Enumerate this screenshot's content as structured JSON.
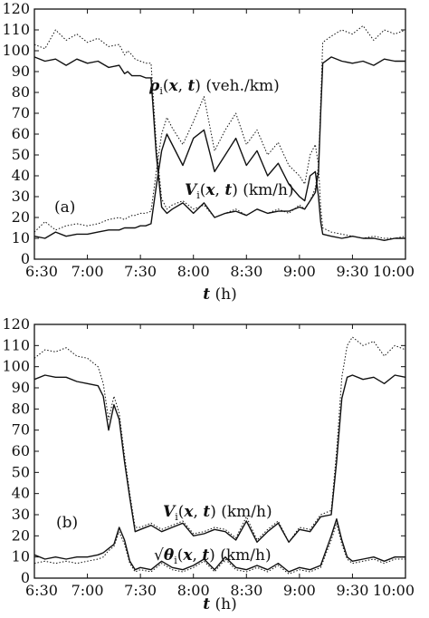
{
  "chart_data": [
    {
      "type": "line",
      "panel_label": "(a)",
      "xlabel": "t (h)",
      "ylabel": "",
      "x_ticks": [
        "6:30",
        "7:00",
        "7:30",
        "8:00",
        "8:30",
        "9:00",
        "9:30",
        "10:00"
      ],
      "x_tick_hours": [
        6.5,
        7.0,
        7.5,
        8.0,
        8.5,
        9.0,
        9.5,
        10.0
      ],
      "xlim": [
        6.5,
        10.0
      ],
      "ylim": [
        0,
        120
      ],
      "y_ticks": [
        0,
        10,
        20,
        30,
        40,
        50,
        60,
        70,
        80,
        90,
        100,
        110,
        120
      ],
      "annotations": [
        {
          "text": "ρi(x, t) (veh./km)",
          "x": 7.62,
          "y": 84
        },
        {
          "text": "Vi(x, t) (km/h)",
          "x": 7.88,
          "y": 28
        },
        {
          "text": "(a)",
          "x": 6.6,
          "y": 24
        }
      ],
      "series": [
        {
          "style": "solid",
          "x": [
            6.5,
            6.6,
            6.7,
            6.8,
            6.9,
            7.0,
            7.1,
            7.2,
            7.3,
            7.35,
            7.38,
            7.42,
            7.45,
            7.5,
            7.55,
            7.6,
            7.65,
            7.7,
            7.75,
            7.8,
            7.9,
            8.0,
            8.1,
            8.2,
            8.3,
            8.4,
            8.5,
            8.6,
            8.7,
            8.8,
            8.9,
            9.0,
            9.05,
            9.1,
            9.15,
            9.18,
            9.2,
            9.22,
            9.3,
            9.4,
            9.5,
            9.6,
            9.7,
            9.8,
            9.9,
            10.0
          ],
          "y": [
            97,
            95,
            96,
            93,
            96,
            94,
            95,
            92,
            93,
            89,
            90,
            88,
            88,
            88,
            87,
            87,
            50,
            25,
            22,
            24,
            27,
            22,
            27,
            20,
            22,
            23,
            21,
            24,
            22,
            23,
            23,
            25,
            24,
            28,
            32,
            42,
            70,
            94,
            97,
            95,
            94,
            95,
            93,
            96,
            95,
            95
          ]
        },
        {
          "style": "dotted",
          "x": [
            6.5,
            6.6,
            6.7,
            6.8,
            6.9,
            7.0,
            7.1,
            7.2,
            7.3,
            7.35,
            7.38,
            7.42,
            7.45,
            7.5,
            7.55,
            7.6,
            7.65,
            7.7,
            7.75,
            7.8,
            7.9,
            8.0,
            8.1,
            8.2,
            8.3,
            8.4,
            8.5,
            8.6,
            8.7,
            8.8,
            8.9,
            9.0,
            9.05,
            9.1,
            9.15,
            9.18,
            9.2,
            9.22,
            9.3,
            9.4,
            9.5,
            9.6,
            9.7,
            9.8,
            9.9,
            10.0
          ],
          "y": [
            103,
            101,
            110,
            105,
            108,
            104,
            106,
            102,
            103,
            98,
            100,
            98,
            96,
            95,
            94,
            94,
            55,
            29,
            24,
            26,
            28,
            24,
            26,
            20,
            22,
            24,
            21,
            24,
            22,
            24,
            22,
            26,
            24,
            28,
            34,
            45,
            75,
            104,
            107,
            110,
            108,
            112,
            105,
            110,
            108,
            110
          ]
        },
        {
          "style": "solid",
          "x": [
            6.5,
            6.6,
            6.7,
            6.8,
            6.9,
            7.0,
            7.1,
            7.2,
            7.3,
            7.35,
            7.38,
            7.42,
            7.45,
            7.5,
            7.55,
            7.6,
            7.65,
            7.7,
            7.75,
            7.8,
            7.9,
            8.0,
            8.1,
            8.2,
            8.3,
            8.4,
            8.5,
            8.6,
            8.7,
            8.8,
            8.9,
            9.0,
            9.05,
            9.1,
            9.15,
            9.18,
            9.2,
            9.22,
            9.3,
            9.4,
            9.5,
            9.6,
            9.7,
            9.8,
            9.9,
            10.0
          ],
          "y": [
            11,
            10,
            13,
            11,
            12,
            12,
            13,
            14,
            14,
            15,
            15,
            15,
            15,
            16,
            16,
            17,
            35,
            52,
            60,
            55,
            45,
            58,
            62,
            42,
            50,
            58,
            45,
            52,
            40,
            46,
            36,
            30,
            28,
            40,
            42,
            30,
            18,
            12,
            11,
            10,
            11,
            10,
            10,
            9,
            10,
            10
          ]
        },
        {
          "style": "dotted",
          "x": [
            6.5,
            6.6,
            6.7,
            6.8,
            6.9,
            7.0,
            7.1,
            7.2,
            7.3,
            7.35,
            7.38,
            7.42,
            7.45,
            7.5,
            7.55,
            7.6,
            7.65,
            7.7,
            7.75,
            7.8,
            7.9,
            8.0,
            8.1,
            8.2,
            8.3,
            8.4,
            8.5,
            8.6,
            8.7,
            8.8,
            8.9,
            9.0,
            9.05,
            9.1,
            9.15,
            9.18,
            9.2,
            9.22,
            9.3,
            9.4,
            9.5,
            9.6,
            9.7,
            9.8,
            9.9,
            10.0
          ],
          "y": [
            13,
            18,
            14,
            16,
            17,
            16,
            17,
            19,
            20,
            19,
            20,
            21,
            21,
            22,
            22,
            23,
            42,
            60,
            68,
            63,
            55,
            66,
            78,
            52,
            62,
            70,
            55,
            62,
            50,
            56,
            45,
            40,
            36,
            50,
            55,
            45,
            25,
            15,
            13,
            12,
            11,
            10,
            11,
            10,
            10,
            11
          ]
        }
      ]
    },
    {
      "type": "line",
      "panel_label": "(b)",
      "xlabel": "t (h)",
      "ylabel": "",
      "x_ticks": [
        "6:30",
        "7:00",
        "7:30",
        "8:00",
        "8:30",
        "9:00",
        "9:30",
        "10:00"
      ],
      "x_tick_hours": [
        6.5,
        7.0,
        7.5,
        8.0,
        8.5,
        9.0,
        9.5,
        10.0
      ],
      "xlim": [
        6.5,
        10.0
      ],
      "ylim": [
        0,
        120
      ],
      "y_ticks": [
        0,
        10,
        20,
        30,
        40,
        50,
        60,
        70,
        80,
        90,
        100,
        110,
        120
      ],
      "annotations": [
        {
          "text": "Vi(x, t) (km/h)",
          "x": 8.3,
          "y": 26
        },
        {
          "text": "√θi(x, t) (km/h)",
          "x": 7.94,
          "y": 11
        },
        {
          "text": "(b)",
          "x": 6.6,
          "y": 21
        }
      ],
      "series": [
        {
          "style": "solid",
          "x": [
            6.5,
            6.6,
            6.7,
            6.8,
            6.9,
            7.0,
            7.1,
            7.15,
            7.2,
            7.25,
            7.3,
            7.35,
            7.4,
            7.45,
            7.5,
            7.6,
            7.7,
            7.8,
            7.9,
            8.0,
            8.1,
            8.2,
            8.3,
            8.4,
            8.5,
            8.6,
            8.7,
            8.8,
            8.9,
            9.0,
            9.1,
            9.2,
            9.3,
            9.35,
            9.4,
            9.45,
            9.5,
            9.6,
            9.7,
            9.8,
            9.9,
            10.0
          ],
          "y": [
            94,
            96,
            95,
            95,
            93,
            92,
            91,
            86,
            70,
            82,
            75,
            55,
            38,
            22,
            23,
            25,
            22,
            24,
            26,
            20,
            21,
            23,
            22,
            18,
            27,
            17,
            22,
            26,
            17,
            23,
            22,
            29,
            30,
            55,
            85,
            95,
            96,
            94,
            95,
            92,
            96,
            95
          ]
        },
        {
          "style": "dotted",
          "x": [
            6.5,
            6.6,
            6.7,
            6.8,
            6.9,
            7.0,
            7.1,
            7.15,
            7.2,
            7.25,
            7.3,
            7.35,
            7.4,
            7.45,
            7.5,
            7.6,
            7.7,
            7.8,
            7.9,
            8.0,
            8.1,
            8.2,
            8.3,
            8.4,
            8.5,
            8.6,
            8.7,
            8.8,
            8.9,
            9.0,
            9.1,
            9.2,
            9.3,
            9.35,
            9.4,
            9.45,
            9.5,
            9.6,
            9.7,
            9.8,
            9.9,
            10.0
          ],
          "y": [
            104,
            108,
            107,
            109,
            105,
            104,
            100,
            92,
            75,
            86,
            78,
            58,
            40,
            24,
            24,
            26,
            23,
            25,
            27,
            21,
            22,
            24,
            23,
            19,
            29,
            18,
            23,
            27,
            17,
            24,
            23,
            30,
            32,
            60,
            95,
            110,
            114,
            110,
            112,
            105,
            110,
            108
          ]
        },
        {
          "style": "solid",
          "x": [
            6.5,
            6.6,
            6.7,
            6.8,
            6.9,
            7.0,
            7.1,
            7.15,
            7.2,
            7.25,
            7.3,
            7.35,
            7.4,
            7.45,
            7.5,
            7.6,
            7.7,
            7.8,
            7.9,
            8.0,
            8.1,
            8.2,
            8.3,
            8.4,
            8.5,
            8.6,
            8.7,
            8.8,
            8.9,
            9.0,
            9.1,
            9.2,
            9.3,
            9.35,
            9.4,
            9.45,
            9.5,
            9.6,
            9.7,
            9.8,
            9.9,
            10.0
          ],
          "y": [
            11,
            9,
            10,
            9,
            10,
            10,
            11,
            12,
            14,
            16,
            24,
            18,
            8,
            4,
            5,
            4,
            8,
            5,
            4,
            6,
            9,
            4,
            10,
            5,
            4,
            6,
            4,
            7,
            3,
            5,
            4,
            6,
            20,
            28,
            18,
            10,
            8,
            9,
            10,
            8,
            10,
            10
          ]
        },
        {
          "style": "dotted",
          "x": [
            6.5,
            6.6,
            6.7,
            6.8,
            6.9,
            7.0,
            7.1,
            7.15,
            7.2,
            7.25,
            7.3,
            7.35,
            7.4,
            7.45,
            7.5,
            7.6,
            7.7,
            7.8,
            7.9,
            8.0,
            8.1,
            8.2,
            8.3,
            8.4,
            8.5,
            8.6,
            8.7,
            8.8,
            8.9,
            9.0,
            9.1,
            9.2,
            9.3,
            9.35,
            9.4,
            9.45,
            9.5,
            9.6,
            9.7,
            9.8,
            9.9,
            10.0
          ],
          "y": [
            7,
            8,
            7,
            8,
            7,
            8,
            9,
            10,
            13,
            15,
            22,
            16,
            7,
            3,
            4,
            3,
            7,
            4,
            3,
            5,
            8,
            3,
            9,
            4,
            3,
            5,
            3,
            6,
            2,
            4,
            3,
            5,
            18,
            26,
            16,
            9,
            7,
            8,
            9,
            7,
            9,
            9
          ]
        }
      ]
    }
  ]
}
